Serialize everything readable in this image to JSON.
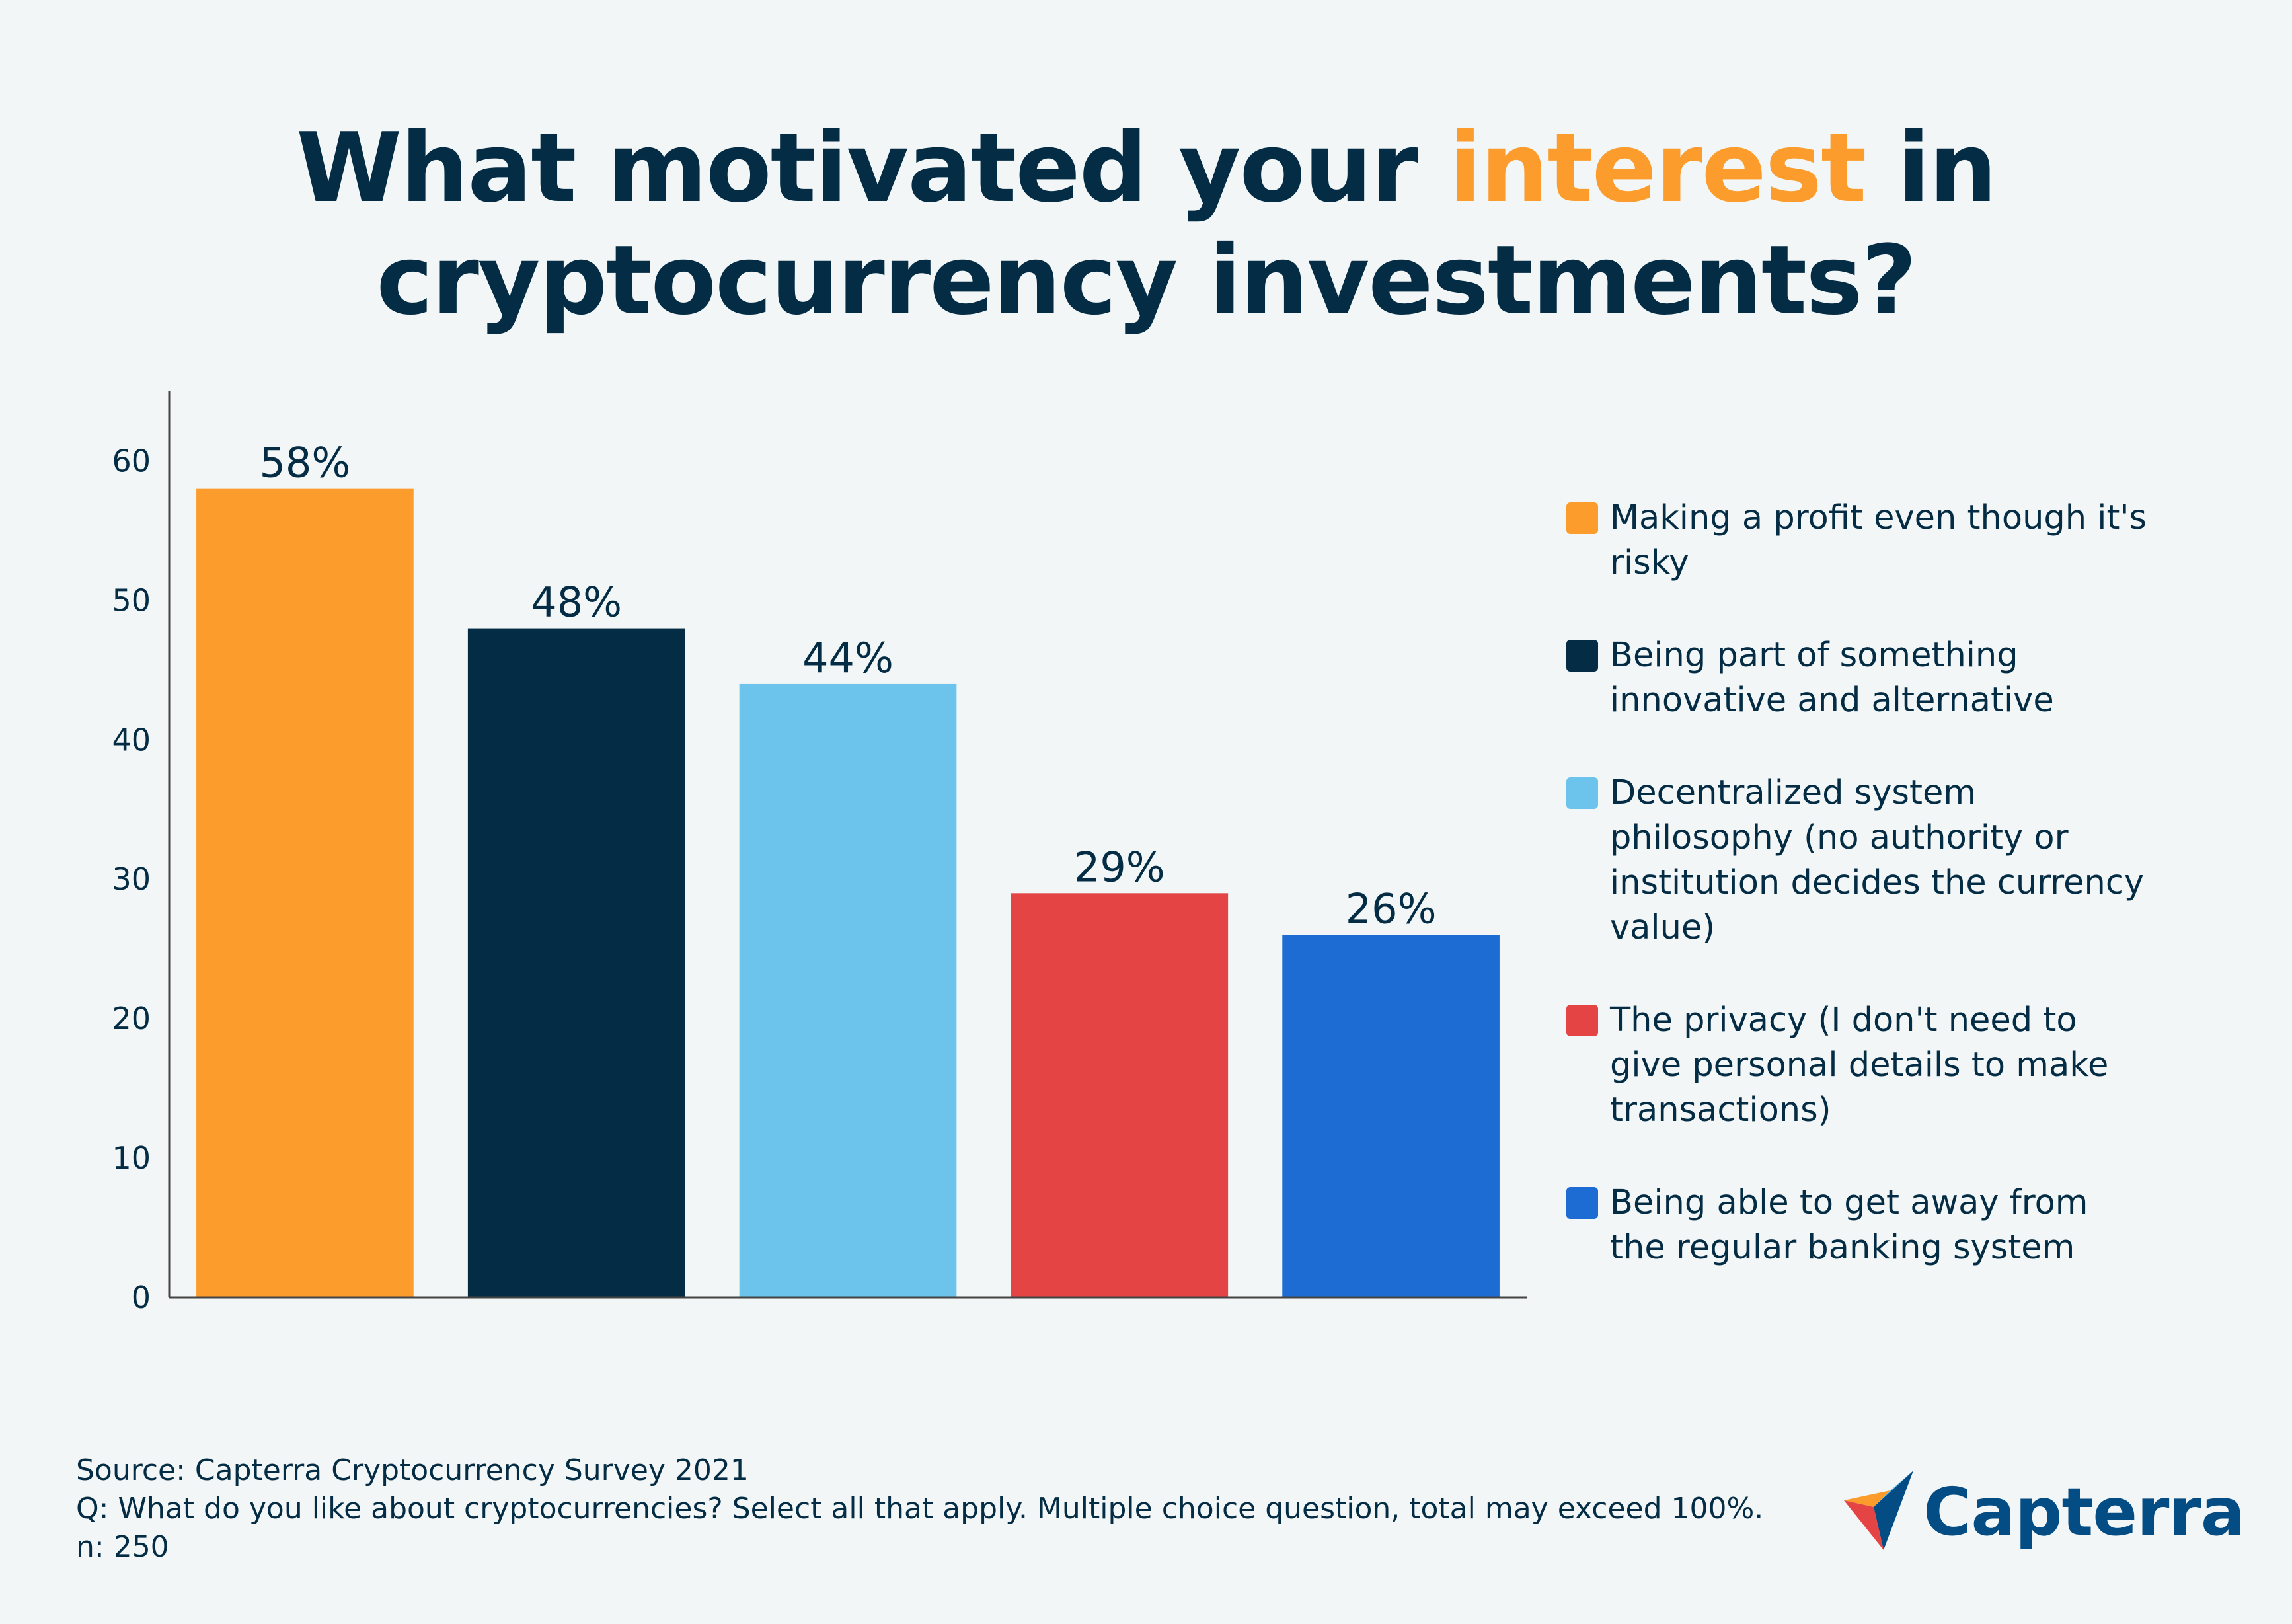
{
  "title": {
    "part1": "What motivated your ",
    "highlight": "interest",
    "part2": " in",
    "line2": "cryptocurrency investments?",
    "highlight_color": "#fc9c2c"
  },
  "chart_data": {
    "type": "bar",
    "categories": [
      "Making a profit even though it's risky",
      "Being part of something innovative and alternative",
      "Decentralized system philosophy (no authority or institution decides the currency value)",
      "The privacy (I don't need to give personal details to make transactions)",
      "Being able to get away from the regular banking system"
    ],
    "values": [
      58,
      48,
      44,
      29,
      26
    ],
    "value_labels": [
      "58%",
      "48%",
      "44%",
      "29%",
      "26%"
    ],
    "colors": [
      "#fc9c2c",
      "#042c44",
      "#6cc4ec",
      "#e44444",
      "#1c6cd4"
    ],
    "ylim": [
      0,
      65
    ],
    "yticks": [
      0,
      10,
      20,
      30,
      40,
      50,
      60
    ],
    "title": "What motivated your interest in cryptocurrency investments?",
    "xlabel": "",
    "ylabel": "",
    "grid": false,
    "legend": "right"
  },
  "legend": {
    "items": [
      {
        "line1": "Making a profit even though it's",
        "line2": "risky",
        "color": "#fc9c2c"
      },
      {
        "line1": "Being part of something",
        "line2": "innovative and alternative",
        "color": "#042c44"
      },
      {
        "line1": "Decentralized system",
        "line2": "philosophy (no authority or",
        "line3": "institution decides the currency",
        "line4": "value)",
        "color": "#6cc4ec"
      },
      {
        "line1": "The privacy (I don't need to",
        "line2": "give personal details to make",
        "line3": "transactions)",
        "color": "#e44444"
      },
      {
        "line1": "Being able to get away from",
        "line2": "the regular banking system",
        "color": "#1c6cd4"
      }
    ]
  },
  "footer": {
    "source": "Source: Capterra Cryptocurrency Survey 2021",
    "question": "Q: What do you like about cryptocurrencies? Select all that apply. Multiple choice question, total may exceed 100%.",
    "n": "n: 250"
  },
  "logo": {
    "text": "Capterra",
    "icon": "capterra-arrow-icon"
  }
}
